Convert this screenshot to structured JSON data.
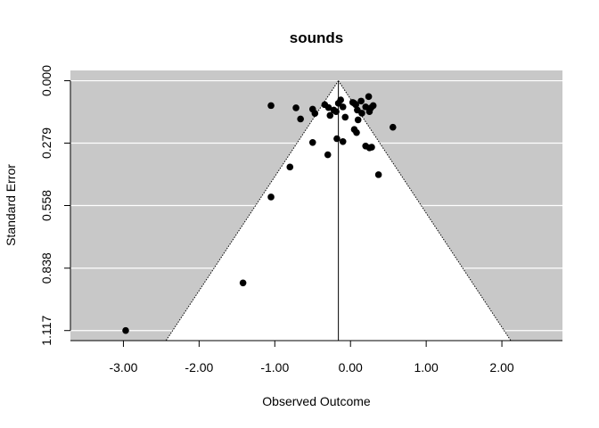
{
  "chart_data": {
    "type": "scatter",
    "subtype": "funnel",
    "title": "sounds",
    "xlabel": "Observed Outcome",
    "ylabel": "Standard Error",
    "xlim": [
      -3.7,
      2.8
    ],
    "ylim": [
      1.162,
      -0.046
    ],
    "y_reversed": true,
    "x_ticks": [
      -3,
      -2,
      -1,
      0,
      1,
      2
    ],
    "x_tick_labels": [
      "-3.00",
      "-2.00",
      "-1.00",
      "0.00",
      "1.00",
      "2.00"
    ],
    "y_ticks": [
      0.0,
      0.279,
      0.558,
      0.838,
      1.117
    ],
    "y_tick_labels": [
      "0.000",
      "0.279",
      "0.558",
      "0.838",
      "1.117"
    ],
    "summary_estimate": -0.16,
    "funnel_z": 1.96,
    "colors": {
      "background_region": "#c8c8c8",
      "funnel_region": "#ffffff",
      "points": "#000000",
      "gridlines": "#ffffff"
    },
    "grid": true,
    "points": [
      {
        "x": -2.97,
        "y": 1.117
      },
      {
        "x": -1.42,
        "y": 0.904
      },
      {
        "x": -1.05,
        "y": 0.52
      },
      {
        "x": -0.8,
        "y": 0.386
      },
      {
        "x": -0.5,
        "y": 0.276
      },
      {
        "x": -0.3,
        "y": 0.331
      },
      {
        "x": -0.18,
        "y": 0.259
      },
      {
        "x": -0.1,
        "y": 0.272
      },
      {
        "x": 0.05,
        "y": 0.218
      },
      {
        "x": 0.08,
        "y": 0.232
      },
      {
        "x": 0.2,
        "y": 0.292
      },
      {
        "x": 0.25,
        "y": 0.3
      },
      {
        "x": 0.28,
        "y": 0.297
      },
      {
        "x": 0.37,
        "y": 0.42
      },
      {
        "x": 0.56,
        "y": 0.208
      },
      {
        "x": -1.05,
        "y": 0.111
      },
      {
        "x": -0.72,
        "y": 0.121
      },
      {
        "x": -0.66,
        "y": 0.171
      },
      {
        "x": -0.5,
        "y": 0.127
      },
      {
        "x": -0.47,
        "y": 0.146
      },
      {
        "x": -0.34,
        "y": 0.107
      },
      {
        "x": -0.29,
        "y": 0.12
      },
      {
        "x": -0.27,
        "y": 0.155
      },
      {
        "x": -0.22,
        "y": 0.131
      },
      {
        "x": -0.19,
        "y": 0.138
      },
      {
        "x": -0.16,
        "y": 0.101
      },
      {
        "x": -0.13,
        "y": 0.086
      },
      {
        "x": -0.1,
        "y": 0.117
      },
      {
        "x": -0.07,
        "y": 0.163
      },
      {
        "x": 0.03,
        "y": 0.097
      },
      {
        "x": 0.05,
        "y": 0.101
      },
      {
        "x": 0.07,
        "y": 0.107
      },
      {
        "x": 0.09,
        "y": 0.131
      },
      {
        "x": 0.1,
        "y": 0.175
      },
      {
        "x": 0.14,
        "y": 0.091
      },
      {
        "x": 0.15,
        "y": 0.145
      },
      {
        "x": 0.2,
        "y": 0.117
      },
      {
        "x": 0.24,
        "y": 0.071
      },
      {
        "x": 0.27,
        "y": 0.121
      },
      {
        "x": 0.25,
        "y": 0.138
      },
      {
        "x": 0.3,
        "y": 0.111
      }
    ]
  }
}
